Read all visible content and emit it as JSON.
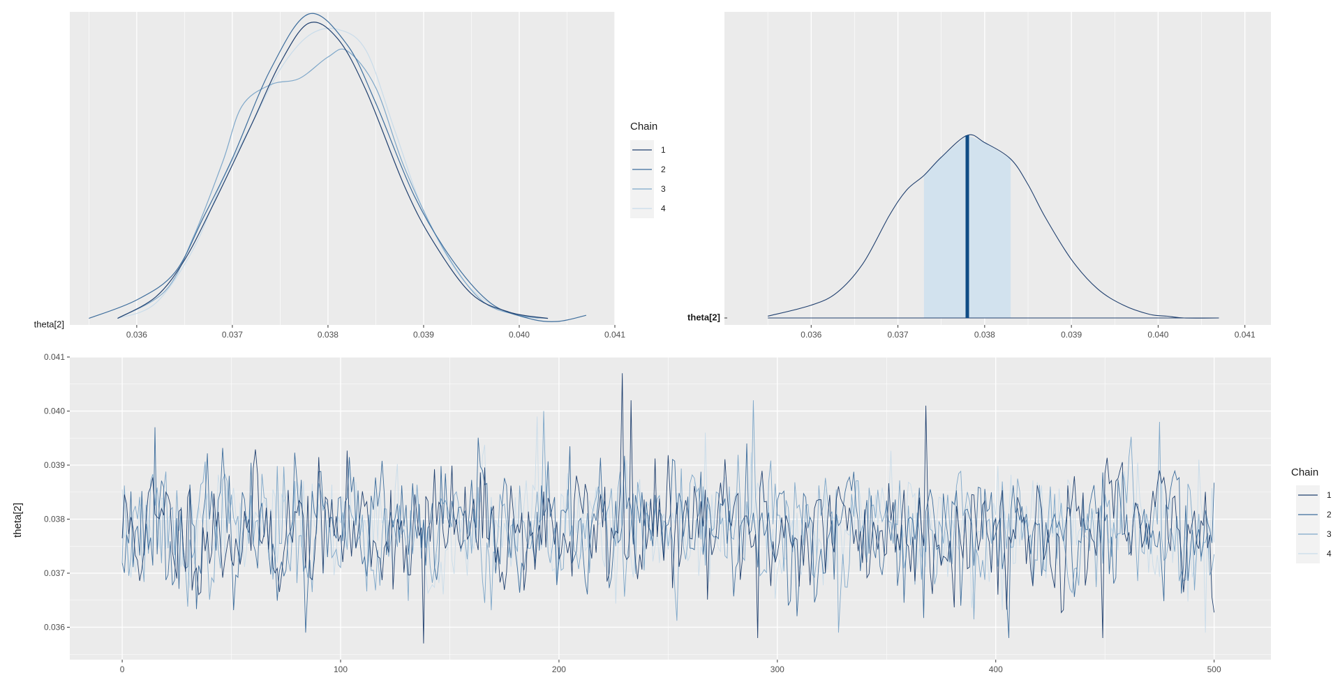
{
  "chart_data": [
    {
      "type": "line",
      "subtype": "density-overlay",
      "ylabel": "theta[2]",
      "xlim": [
        0.0353,
        0.041
      ],
      "x_ticks": [
        "0.036",
        "0.037",
        "0.038",
        "0.039",
        "0.040",
        "0.041"
      ],
      "legend": {
        "title": "Chain",
        "entries": [
          "1",
          "2",
          "3",
          "4"
        ],
        "position": "right"
      },
      "series": [
        {
          "name": "1",
          "color": "#1f3f6e",
          "x": [
            0.0358,
            0.0362,
            0.0365,
            0.0368,
            0.0372,
            0.0375,
            0.0378,
            0.0381,
            0.0384,
            0.0388,
            0.0391,
            0.0395,
            0.0399,
            0.0403
          ],
          "y": [
            0.01,
            0.08,
            0.2,
            0.38,
            0.64,
            0.84,
            0.97,
            0.92,
            0.75,
            0.44,
            0.26,
            0.09,
            0.03,
            0.01
          ]
        },
        {
          "name": "2",
          "color": "#3d6d9c",
          "x": [
            0.0355,
            0.036,
            0.0364,
            0.0367,
            0.037,
            0.0374,
            0.0378,
            0.0382,
            0.0385,
            0.0389,
            0.0393,
            0.0397,
            0.0401,
            0.0404,
            0.0407
          ],
          "y": [
            0.01,
            0.07,
            0.16,
            0.34,
            0.53,
            0.82,
            1.0,
            0.9,
            0.71,
            0.41,
            0.2,
            0.06,
            0.01,
            0.0,
            0.02
          ]
        },
        {
          "name": "3",
          "color": "#7ea7c9",
          "x": [
            0.0358,
            0.0363,
            0.0366,
            0.0369,
            0.0371,
            0.0374,
            0.0377,
            0.038,
            0.0382,
            0.0385,
            0.0388,
            0.0392,
            0.0396,
            0.04,
            0.0403
          ],
          "y": [
            0.01,
            0.1,
            0.28,
            0.52,
            0.7,
            0.77,
            0.79,
            0.86,
            0.88,
            0.76,
            0.5,
            0.24,
            0.07,
            0.02,
            0.01
          ]
        },
        {
          "name": "4",
          "color": "#c9dcea",
          "x": [
            0.0358,
            0.0362,
            0.0366,
            0.0369,
            0.0372,
            0.0375,
            0.0378,
            0.0381,
            0.0384,
            0.0387,
            0.039,
            0.0394,
            0.0398,
            0.0402
          ],
          "y": [
            0.01,
            0.06,
            0.24,
            0.46,
            0.64,
            0.82,
            0.93,
            0.95,
            0.88,
            0.62,
            0.36,
            0.14,
            0.04,
            0.01
          ]
        }
      ]
    },
    {
      "type": "area",
      "subtype": "posterior-density",
      "ylabel": "theta[2]",
      "xlim": [
        0.035,
        0.0413
      ],
      "x_ticks": [
        "0.036",
        "0.037",
        "0.038",
        "0.039",
        "0.040",
        "0.041"
      ],
      "median": 0.0378,
      "interval": [
        0.0373,
        0.0383
      ],
      "line_color": "#1f3f6e",
      "fill_color": "#d2e2ee",
      "median_color": "#0f4c86",
      "x": [
        0.0355,
        0.036,
        0.0363,
        0.0366,
        0.0369,
        0.0371,
        0.0373,
        0.0375,
        0.0378,
        0.038,
        0.0383,
        0.0385,
        0.0387,
        0.039,
        0.0393,
        0.0396,
        0.0399,
        0.0401,
        0.0403,
        0.0407
      ],
      "y": [
        0.01,
        0.07,
        0.14,
        0.3,
        0.56,
        0.7,
        0.78,
        0.88,
        1.0,
        0.96,
        0.87,
        0.73,
        0.55,
        0.32,
        0.16,
        0.07,
        0.02,
        0.01,
        0.0,
        0.0
      ]
    },
    {
      "type": "line",
      "subtype": "trace",
      "ylabel": "theta[2]",
      "xlim": [
        -24,
        526
      ],
      "ylim": [
        0.0354,
        0.041
      ],
      "x_ticks": [
        "0",
        "100",
        "200",
        "300",
        "400",
        "500"
      ],
      "y_ticks": [
        "0.036",
        "0.037",
        "0.038",
        "0.039",
        "0.040",
        "0.041"
      ],
      "legend": {
        "title": "Chain",
        "entries": [
          "1",
          "2",
          "3",
          "4"
        ],
        "position": "right"
      },
      "n_iterations": 500,
      "center": 0.0378,
      "series": [
        {
          "name": "1",
          "color": "#1f3f6e",
          "seed": 11,
          "spikes": [
            [
              229,
              0.0407
            ],
            [
              233,
              0.0402
            ],
            [
              368,
              0.0401
            ],
            [
              291,
              0.0358
            ],
            [
              138,
              0.0357
            ],
            [
              449,
              0.0358
            ]
          ]
        },
        {
          "name": "2",
          "color": "#3d6d9c",
          "seed": 23,
          "spikes": [
            [
              286,
              0.0394
            ],
            [
              406,
              0.0358
            ],
            [
              15,
              0.0397
            ],
            [
              84,
              0.0359
            ]
          ]
        },
        {
          "name": "3",
          "color": "#7ea7c9",
          "seed": 37,
          "spikes": [
            [
              289,
              0.0402
            ],
            [
              193,
              0.04
            ],
            [
              475,
              0.0398
            ],
            [
              328,
              0.0359
            ]
          ]
        },
        {
          "name": "4",
          "color": "#c9dcea",
          "seed": 51,
          "spikes": [
            [
              190,
              0.0399
            ],
            [
              267,
              0.0396
            ],
            [
              496,
              0.0359
            ]
          ]
        }
      ]
    }
  ]
}
